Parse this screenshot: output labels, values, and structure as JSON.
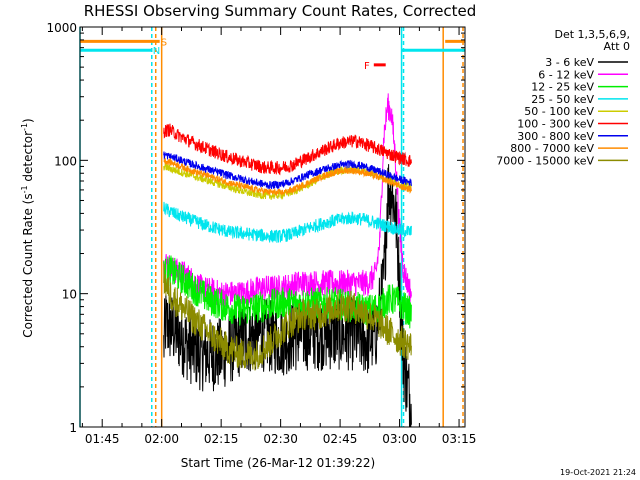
{
  "chart_data": {
    "type": "line",
    "title": "RHESSI Observing Summary Count Rates, Corrected",
    "xlabel": "Start Time (26-Mar-12 01:39:22)",
    "ylabel": "Corrected Count Rate (s",
    "ylabel_sup1": "-1",
    "ylabel_mid": " detector",
    "ylabel_sup2": "-1",
    "ylabel_end": ")",
    "yscale": "log",
    "ylim": [
      1,
      1000
    ],
    "xlim_minutes": [
      99.4,
      196.5
    ],
    "x_ticks": [
      {
        "label": "01:45",
        "minute": 105
      },
      {
        "label": "02:00",
        "minute": 120
      },
      {
        "label": "02:15",
        "minute": 135
      },
      {
        "label": "02:30",
        "minute": 150
      },
      {
        "label": "02:45",
        "minute": 165
      },
      {
        "label": "03:00",
        "minute": 180
      },
      {
        "label": "03:15",
        "minute": 195
      }
    ],
    "y_ticks": [
      {
        "label": "1",
        "value": 1
      },
      {
        "label": "10",
        "value": 10
      },
      {
        "label": "100",
        "value": 100
      },
      {
        "label": "1000",
        "value": 1000
      }
    ],
    "legend_title": "Det 1,3,5,6,9,",
    "legend_subtitle": "Att 0",
    "series": [
      {
        "name": "3 - 6 keV",
        "color": "#000000",
        "noise": 0.28,
        "points": [
          [
            120.5,
            4
          ],
          [
            121,
            6
          ],
          [
            124,
            5
          ],
          [
            127,
            4
          ],
          [
            130,
            3.5
          ],
          [
            135,
            3.5
          ],
          [
            140,
            4.5
          ],
          [
            145,
            5
          ],
          [
            150,
            4.5
          ],
          [
            155,
            5
          ],
          [
            160,
            5
          ],
          [
            164,
            5
          ],
          [
            168,
            5
          ],
          [
            172,
            4.5
          ],
          [
            174,
            5
          ],
          [
            176,
            12
          ],
          [
            177,
            60
          ],
          [
            178,
            60
          ],
          [
            179,
            40
          ],
          [
            180,
            12
          ],
          [
            181,
            3
          ],
          [
            182,
            2
          ],
          [
            183,
            1.5
          ]
        ]
      },
      {
        "name": "6 - 12 keV",
        "color": "#ff00ff",
        "noise": 0.1,
        "points": [
          [
            120.5,
            16
          ],
          [
            121,
            17
          ],
          [
            123,
            15
          ],
          [
            126,
            14
          ],
          [
            130,
            11
          ],
          [
            135,
            10
          ],
          [
            140,
            10
          ],
          [
            145,
            11
          ],
          [
            150,
            11
          ],
          [
            155,
            12
          ],
          [
            160,
            12
          ],
          [
            164,
            12
          ],
          [
            168,
            12
          ],
          [
            172,
            12
          ],
          [
            174,
            14
          ],
          [
            175,
            25
          ],
          [
            176,
            150
          ],
          [
            177,
            260
          ],
          [
            178,
            220
          ],
          [
            179,
            100
          ],
          [
            180,
            30
          ],
          [
            181,
            15
          ],
          [
            182,
            12
          ],
          [
            183,
            10
          ]
        ]
      },
      {
        "name": "12 - 25 keV",
        "color": "#00ee00",
        "noise": 0.12,
        "points": [
          [
            120.5,
            14
          ],
          [
            122,
            15
          ],
          [
            125,
            13
          ],
          [
            128,
            11
          ],
          [
            132,
            9
          ],
          [
            136,
            8
          ],
          [
            140,
            7.5
          ],
          [
            145,
            8
          ],
          [
            150,
            8.5
          ],
          [
            155,
            8.5
          ],
          [
            160,
            8.5
          ],
          [
            164,
            8.5
          ],
          [
            168,
            8
          ],
          [
            172,
            7.5
          ],
          [
            175,
            8
          ],
          [
            177,
            9
          ],
          [
            179,
            9
          ],
          [
            181,
            8
          ],
          [
            183,
            7
          ]
        ]
      },
      {
        "name": "25 - 50 keV",
        "color": "#00e5ee",
        "noise": 0.05,
        "points": [
          [
            120.5,
            44
          ],
          [
            123,
            40
          ],
          [
            127,
            36
          ],
          [
            132,
            32
          ],
          [
            137,
            29
          ],
          [
            142,
            28
          ],
          [
            147,
            27
          ],
          [
            150,
            27
          ],
          [
            153,
            28
          ],
          [
            157,
            31
          ],
          [
            161,
            34
          ],
          [
            165,
            36
          ],
          [
            168,
            37
          ],
          [
            171,
            36
          ],
          [
            174,
            34
          ],
          [
            177,
            32
          ],
          [
            180,
            30
          ],
          [
            183,
            29
          ]
        ]
      },
      {
        "name": "50 - 100 keV",
        "color": "#cccc00",
        "noise": 0.03,
        "points": [
          [
            120.5,
            90
          ],
          [
            123,
            85
          ],
          [
            127,
            78
          ],
          [
            132,
            70
          ],
          [
            137,
            63
          ],
          [
            142,
            57
          ],
          [
            147,
            54
          ],
          [
            150,
            55
          ],
          [
            153,
            58
          ],
          [
            157,
            66
          ],
          [
            161,
            76
          ],
          [
            165,
            84
          ],
          [
            168,
            86
          ],
          [
            171,
            83
          ],
          [
            174,
            78
          ],
          [
            177,
            72
          ],
          [
            180,
            66
          ],
          [
            183,
            62
          ]
        ]
      },
      {
        "name": "100 - 300 keV",
        "color": "#ff0000",
        "noise": 0.05,
        "points": [
          [
            120.5,
            165
          ],
          [
            122,
            170
          ],
          [
            124,
            155
          ],
          [
            128,
            135
          ],
          [
            132,
            120
          ],
          [
            137,
            105
          ],
          [
            142,
            95
          ],
          [
            146,
            88
          ],
          [
            150,
            88
          ],
          [
            153,
            92
          ],
          [
            157,
            105
          ],
          [
            161,
            120
          ],
          [
            165,
            135
          ],
          [
            169,
            140
          ],
          [
            172,
            130
          ],
          [
            175,
            120
          ],
          [
            178,
            110
          ],
          [
            180,
            105
          ],
          [
            183,
            98
          ]
        ]
      },
      {
        "name": "300 - 800 keV",
        "color": "#0000ee",
        "noise": 0.03,
        "points": [
          [
            120.5,
            110
          ],
          [
            123,
            105
          ],
          [
            127,
            95
          ],
          [
            132,
            85
          ],
          [
            137,
            77
          ],
          [
            142,
            70
          ],
          [
            147,
            65
          ],
          [
            150,
            66
          ],
          [
            153,
            70
          ],
          [
            157,
            78
          ],
          [
            161,
            86
          ],
          [
            165,
            92
          ],
          [
            168,
            94
          ],
          [
            171,
            90
          ],
          [
            174,
            84
          ],
          [
            177,
            78
          ],
          [
            180,
            72
          ],
          [
            183,
            68
          ]
        ]
      },
      {
        "name": "800 - 7000 keV",
        "color": "#ff8c00",
        "noise": 0.025,
        "points": [
          [
            120.5,
            100
          ],
          [
            123,
            95
          ],
          [
            127,
            85
          ],
          [
            132,
            76
          ],
          [
            137,
            68
          ],
          [
            142,
            62
          ],
          [
            147,
            58
          ],
          [
            150,
            57
          ],
          [
            153,
            60
          ],
          [
            157,
            68
          ],
          [
            161,
            77
          ],
          [
            165,
            83
          ],
          [
            168,
            84
          ],
          [
            171,
            81
          ],
          [
            174,
            76
          ],
          [
            177,
            70
          ],
          [
            180,
            64
          ],
          [
            183,
            60
          ]
        ]
      },
      {
        "name": "7000 - 15000 keV",
        "color": "#8b8b00",
        "noise": 0.12,
        "points": [
          [
            120.5,
            13
          ],
          [
            122,
            10
          ],
          [
            125,
            8
          ],
          [
            128,
            6.5
          ],
          [
            132,
            5
          ],
          [
            136,
            4
          ],
          [
            140,
            3.5
          ],
          [
            144,
            3.5
          ],
          [
            148,
            4.5
          ],
          [
            152,
            6
          ],
          [
            156,
            7
          ],
          [
            160,
            7
          ],
          [
            164,
            8
          ],
          [
            168,
            8
          ],
          [
            172,
            7
          ],
          [
            175,
            6
          ],
          [
            178,
            5
          ],
          [
            180,
            4.5
          ],
          [
            183,
            4
          ]
        ]
      }
    ],
    "annotations": [
      {
        "label": "S",
        "color": "#ff8c00",
        "y_value": 780,
        "x_start": 99.4,
        "x_end": 119.5
      },
      {
        "label": "N",
        "color": "#00e5ee",
        "y_value": 670,
        "x_start": 99.4,
        "x_end": 117.5
      },
      {
        "label": "F",
        "color": "#ff0000",
        "y_value": 520,
        "x_start": 173.5,
        "x_end": 176.5
      },
      {
        "label": "",
        "color": "#ff8c00",
        "y_value": 780,
        "x_start": 191.5,
        "x_end": 196.5
      },
      {
        "label": "",
        "color": "#00e5ee",
        "y_value": 670,
        "x_start": 180.5,
        "x_end": 196.5
      }
    ],
    "vlines": [
      {
        "minute": 99.4,
        "color": "#00e5ee",
        "style": "solid"
      },
      {
        "minute": 117.5,
        "color": "#00e5ee",
        "style": "dashed"
      },
      {
        "minute": 118.5,
        "color": "#ff8c00",
        "style": "dashed"
      },
      {
        "minute": 120.0,
        "color": "#ff8c00",
        "style": "solid"
      },
      {
        "minute": 180.5,
        "color": "#00e5ee",
        "style": "solid"
      },
      {
        "minute": 181.0,
        "color": "#00e5ee",
        "style": "dashed"
      },
      {
        "minute": 191.0,
        "color": "#ff8c00",
        "style": "solid"
      },
      {
        "minute": 196.0,
        "color": "#ff8c00",
        "style": "dashed"
      }
    ],
    "grid": false,
    "legend_position": "right"
  },
  "footer": {
    "timestamp": "19-Oct-2021 21:24"
  }
}
